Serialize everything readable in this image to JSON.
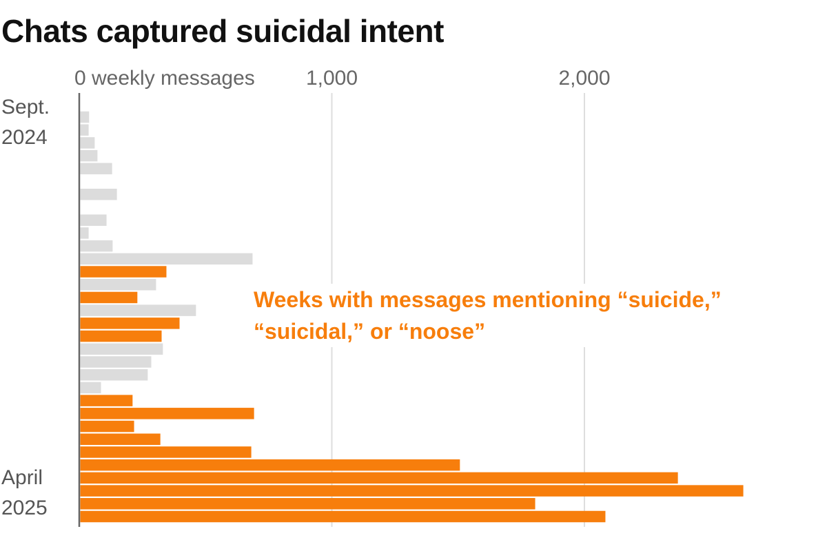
{
  "chart_data": {
    "type": "bar",
    "orientation": "horizontal",
    "title": "Chats captured suicidal intent",
    "categories": [
      "Sept. 2024",
      null,
      null,
      null,
      null,
      null,
      null,
      null,
      null,
      null,
      null,
      null,
      null,
      null,
      null,
      null,
      null,
      null,
      null,
      null,
      null,
      null,
      null,
      null,
      null,
      null,
      null,
      null,
      null,
      null,
      null,
      "April 2025"
    ],
    "series": [
      {
        "name": "Weeks with messages mentioning “suicide,” “suicidal,” or “noose”",
        "color": "#f77e0c",
        "values": [
          null,
          null,
          null,
          null,
          null,
          null,
          null,
          null,
          null,
          null,
          null,
          null,
          341,
          null,
          226,
          null,
          393,
          322,
          null,
          null,
          null,
          null,
          207,
          688,
          213,
          317,
          677,
          1503,
          2366,
          2625,
          1801,
          2079
        ]
      },
      {
        "color": "#dcdcdc",
        "values": [
          35,
          33,
          57,
          68,
          126,
          0,
          145,
          0,
          104,
          33,
          128,
          682,
          null,
          300,
          null,
          458,
          null,
          null,
          327,
          281,
          267,
          82,
          null,
          null,
          null,
          null,
          null,
          null,
          null,
          null,
          null,
          null
        ]
      }
    ],
    "xlim": [
      0,
      2700
    ],
    "xticks": [
      {
        "value": 0,
        "label": "0 weekly messages"
      },
      {
        "value": 1000,
        "label": "1,000"
      },
      {
        "value": 2000,
        "label": "2,000"
      }
    ],
    "grid": true
  }
}
